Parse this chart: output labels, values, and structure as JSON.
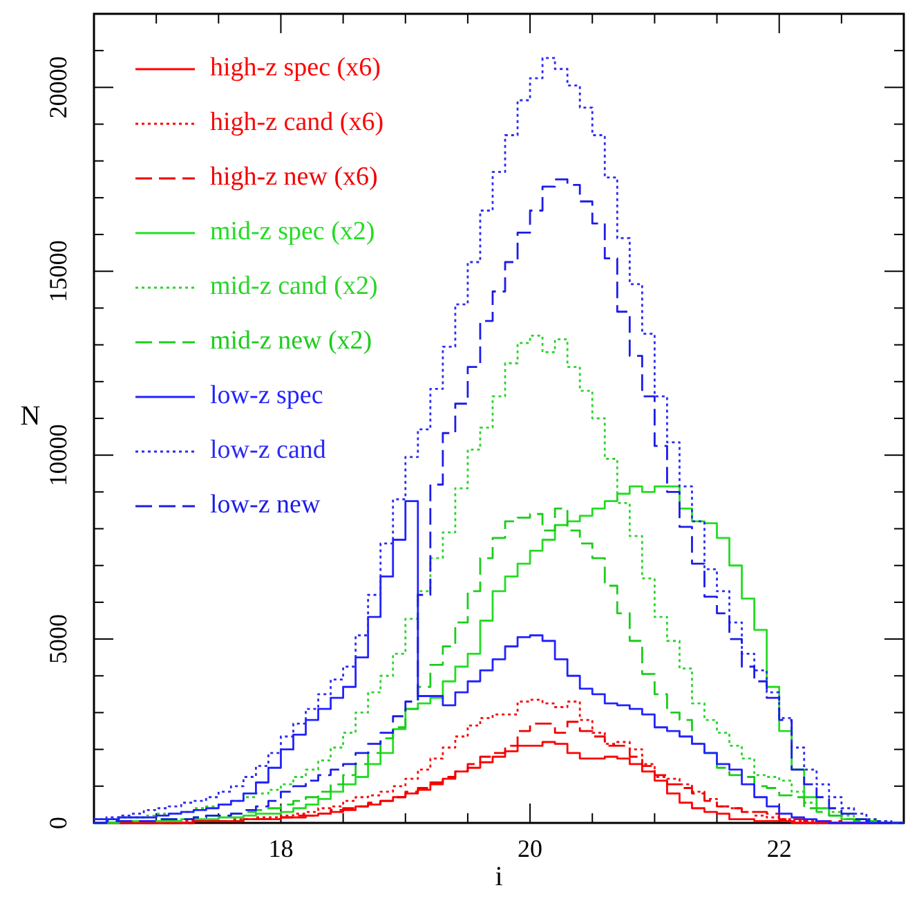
{
  "chart_data": {
    "type": "histogram",
    "xlabel": "i",
    "ylabel": "N",
    "xlim": [
      16.5,
      23
    ],
    "ylim": [
      0,
      22000
    ],
    "xticks": [
      {
        "value": 16.5,
        "label": null
      },
      {
        "value": 17,
        "label": null
      },
      {
        "value": 17.5,
        "label": null
      },
      18,
      {
        "value": 18.5,
        "label": null
      },
      {
        "value": 19,
        "label": null
      },
      {
        "value": 19.5,
        "label": null
      },
      20,
      {
        "value": 20.5,
        "label": null
      },
      {
        "value": 21,
        "label": null
      },
      {
        "value": 21.5,
        "label": null
      },
      22,
      {
        "value": 22.5,
        "label": null
      },
      {
        "value": 23,
        "label": null
      }
    ],
    "yticks": [
      0,
      {
        "value": 1000,
        "label": null
      },
      {
        "value": 2000,
        "label": null
      },
      {
        "value": 3000,
        "label": null
      },
      {
        "value": 4000,
        "label": null
      },
      5000,
      {
        "value": 6000,
        "label": null
      },
      {
        "value": 7000,
        "label": null
      },
      {
        "value": 8000,
        "label": null
      },
      {
        "value": 9000,
        "label": null
      },
      10000,
      {
        "value": 11000,
        "label": null
      },
      {
        "value": 12000,
        "label": null
      },
      {
        "value": 13000,
        "label": null
      },
      {
        "value": 14000,
        "label": null
      },
      15000,
      {
        "value": 16000,
        "label": null
      },
      {
        "value": 17000,
        "label": null
      },
      {
        "value": 18000,
        "label": null
      },
      {
        "value": 19000,
        "label": null
      },
      20000,
      {
        "value": 21000,
        "label": null
      },
      {
        "value": 22000,
        "label": null
      }
    ],
    "legend": "top left",
    "bins": [
      16.5,
      16.6,
      16.7,
      16.8,
      16.9,
      17.0,
      17.1,
      17.2,
      17.3,
      17.4,
      17.5,
      17.6,
      17.7,
      17.8,
      17.9,
      18.0,
      18.1,
      18.2,
      18.3,
      18.4,
      18.5,
      18.6,
      18.7,
      18.8,
      18.9,
      19.0,
      19.1,
      19.2,
      19.3,
      19.4,
      19.5,
      19.6,
      19.7,
      19.8,
      19.9,
      20.0,
      20.1,
      20.2,
      20.3,
      20.4,
      20.5,
      20.6,
      20.7,
      20.8,
      20.9,
      21.0,
      21.1,
      21.2,
      21.3,
      21.4,
      21.5,
      21.6,
      21.7,
      21.8,
      21.9,
      22.0,
      22.1,
      22.2,
      22.3,
      22.4,
      22.5,
      22.6,
      22.7,
      22.8,
      22.9,
      23.0
    ],
    "series": [
      {
        "name": "high-z spec (x6)",
        "color": "#ff0000",
        "line_style": "solid",
        "values": [
          0,
          0,
          0,
          0,
          0,
          0,
          0,
          0,
          50,
          50,
          50,
          50,
          100,
          100,
          100,
          150,
          150,
          200,
          250,
          300,
          350,
          450,
          500,
          600,
          700,
          800,
          900,
          1050,
          1200,
          1400,
          1500,
          1650,
          1800,
          1950,
          2100,
          2100,
          2200,
          2150,
          1900,
          1750,
          1750,
          1800,
          1750,
          1600,
          1400,
          1150,
          800,
          550,
          400,
          300,
          250,
          100,
          100,
          50,
          50,
          50,
          0,
          0,
          0,
          0,
          0,
          0,
          0,
          0,
          0
        ]
      },
      {
        "name": "high-z cand (x6)",
        "color": "#f80808",
        "line_style": "dotted",
        "values": [
          0,
          0,
          0,
          0,
          0,
          0,
          0,
          50,
          50,
          50,
          50,
          100,
          100,
          150,
          150,
          200,
          250,
          300,
          400,
          450,
          600,
          700,
          750,
          850,
          1000,
          1200,
          1450,
          1750,
          2050,
          2350,
          2650,
          2850,
          2950,
          2950,
          3300,
          3350,
          3250,
          3150,
          3300,
          2800,
          2450,
          2150,
          2200,
          2000,
          1600,
          1250,
          1200,
          1050,
          850,
          650,
          450,
          400,
          300,
          200,
          150,
          100,
          50,
          50,
          0,
          0,
          0,
          0,
          0,
          0,
          0
        ]
      },
      {
        "name": "high-z new (x6)",
        "color": "#f00000",
        "line_style": "dashed",
        "values": [
          0,
          0,
          0,
          0,
          0,
          0,
          0,
          0,
          50,
          50,
          50,
          50,
          100,
          100,
          100,
          150,
          200,
          200,
          250,
          350,
          400,
          450,
          550,
          600,
          700,
          850,
          950,
          1100,
          1250,
          1400,
          1600,
          1800,
          1900,
          2100,
          2500,
          2700,
          2700,
          2450,
          2750,
          2500,
          2350,
          2100,
          2100,
          1800,
          1550,
          1300,
          1050,
          950,
          800,
          600,
          450,
          400,
          300,
          300,
          250,
          100,
          100,
          50,
          50,
          50,
          0,
          0,
          0,
          0,
          0
        ]
      },
      {
        "name": "mid-z spec (x2)",
        "color": "#22dd22",
        "line_style": "solid",
        "values": [
          0,
          0,
          50,
          50,
          50,
          50,
          50,
          100,
          100,
          100,
          150,
          150,
          200,
          250,
          250,
          300,
          400,
          500,
          650,
          850,
          1050,
          1250,
          1600,
          1900,
          2550,
          3100,
          3250,
          3400,
          3850,
          4250,
          4600,
          5500,
          6300,
          6700,
          7050,
          7400,
          7700,
          8100,
          8200,
          8350,
          8550,
          8750,
          8950,
          9150,
          9000,
          9150,
          9150,
          8550,
          8200,
          8150,
          7750,
          7000,
          6100,
          5250,
          3700,
          2500,
          1450,
          700,
          400,
          200,
          100,
          100,
          50,
          0,
          0
        ]
      },
      {
        "name": "mid-z cand (x2)",
        "color": "#2ad42a",
        "line_style": "dotted",
        "values": [
          100,
          100,
          150,
          150,
          200,
          250,
          250,
          300,
          400,
          450,
          500,
          600,
          700,
          800,
          900,
          1050,
          1250,
          1450,
          1700,
          2050,
          2450,
          3000,
          3550,
          4000,
          4600,
          5550,
          6300,
          7200,
          7900,
          9100,
          10150,
          10750,
          11600,
          12500,
          13050,
          13250,
          12800,
          13150,
          12400,
          11750,
          11000,
          9900,
          8700,
          7800,
          6650,
          5600,
          4950,
          4200,
          3250,
          2800,
          2450,
          2100,
          1750,
          1300,
          1250,
          1150,
          850,
          550,
          400,
          300,
          200,
          100,
          100,
          50,
          0
        ]
      },
      {
        "name": "mid-z new (x2)",
        "color": "#1ccc1c",
        "line_style": "dashed",
        "values": [
          0,
          0,
          50,
          50,
          50,
          100,
          100,
          100,
          150,
          200,
          200,
          250,
          300,
          350,
          400,
          500,
          600,
          700,
          850,
          1050,
          1300,
          1600,
          1900,
          2300,
          2600,
          3100,
          3700,
          4300,
          4800,
          5450,
          6300,
          7200,
          7750,
          8200,
          8300,
          8400,
          7950,
          8550,
          7950,
          7600,
          7200,
          6450,
          5700,
          4950,
          4050,
          3500,
          3000,
          2800,
          2150,
          1900,
          1500,
          1300,
          1250,
          1000,
          950,
          750,
          700,
          400,
          300,
          200,
          100,
          50,
          50,
          0,
          0
        ]
      },
      {
        "name": "low-z spec",
        "color": "#2222ff",
        "line_style": "solid",
        "values": [
          100,
          100,
          150,
          150,
          150,
          200,
          250,
          300,
          350,
          400,
          500,
          600,
          800,
          1100,
          1500,
          2000,
          2400,
          2800,
          3100,
          3400,
          3700,
          4500,
          5600,
          6700,
          7700,
          8750,
          3450,
          3450,
          3200,
          3550,
          3850,
          4150,
          4450,
          4800,
          5050,
          5100,
          4950,
          4450,
          4000,
          3650,
          3500,
          3250,
          3200,
          3100,
          2950,
          2600,
          2500,
          2350,
          2150,
          1900,
          1600,
          1450,
          1050,
          700,
          450,
          250,
          150,
          100,
          50,
          0,
          0,
          0,
          0,
          0,
          0
        ]
      },
      {
        "name": "low-z cand",
        "color": "#2a2af4",
        "line_style": "dotted",
        "values": [
          100,
          150,
          200,
          250,
          350,
          400,
          450,
          550,
          600,
          700,
          850,
          1000,
          1250,
          1550,
          1900,
          2350,
          2700,
          3100,
          3500,
          3900,
          4250,
          5100,
          6200,
          7600,
          8800,
          9950,
          10700,
          11800,
          12950,
          14100,
          15250,
          16650,
          17700,
          18700,
          19650,
          20250,
          20800,
          20500,
          20050,
          19450,
          18700,
          17550,
          15900,
          14650,
          13300,
          11600,
          10350,
          9150,
          8200,
          6900,
          6300,
          5450,
          4600,
          4150,
          3550,
          2850,
          2050,
          1450,
          1050,
          700,
          400,
          250,
          100,
          50,
          0
        ]
      },
      {
        "name": "low-z new",
        "color": "#1c1ce8",
        "line_style": "dashed",
        "values": [
          0,
          50,
          50,
          50,
          50,
          100,
          100,
          100,
          150,
          200,
          200,
          250,
          350,
          450,
          600,
          850,
          1000,
          1150,
          1300,
          1450,
          1600,
          1900,
          2150,
          2450,
          2900,
          3300,
          6200,
          9200,
          10600,
          11400,
          12400,
          13650,
          14450,
          15250,
          16050,
          16650,
          17300,
          17500,
          17350,
          16900,
          16300,
          15350,
          13900,
          12700,
          11600,
          10250,
          9000,
          8050,
          7050,
          6150,
          5700,
          5000,
          4250,
          3850,
          3400,
          2800,
          1450,
          1050,
          700,
          400,
          250,
          100,
          50,
          0,
          0
        ]
      }
    ]
  }
}
